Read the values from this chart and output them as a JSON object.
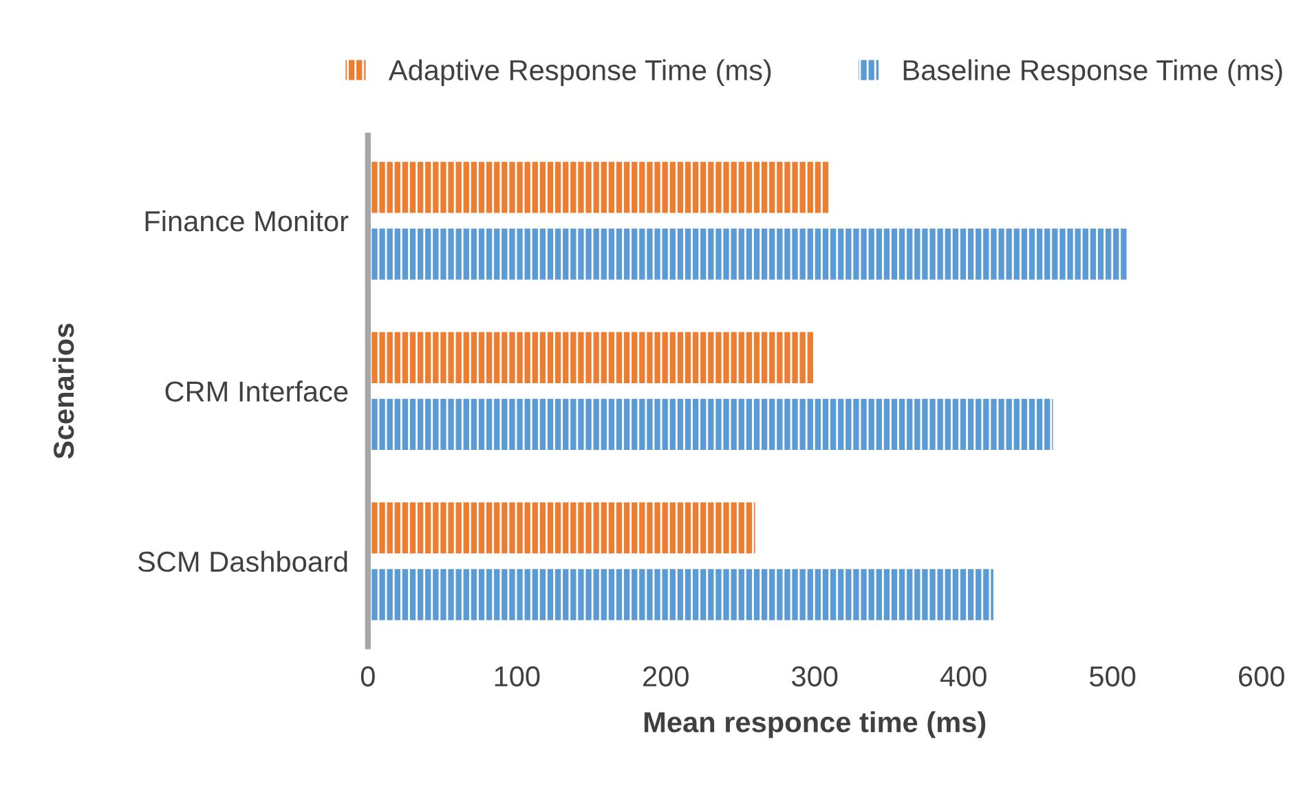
{
  "chart_data": {
    "type": "bar",
    "orientation": "horizontal",
    "xlabel": "Mean responce time (ms)",
    "ylabel": "Scenarios",
    "categories": [
      "Finance Monitor",
      "CRM Interface",
      "SCM Dashboard"
    ],
    "series": [
      {
        "name": "Adaptive Response Time (ms)",
        "color": "#ed7d31",
        "values": [
          310,
          300,
          260
        ]
      },
      {
        "name": "Baseline Response Time (ms)",
        "color": "#5b9bd5",
        "values": [
          510,
          460,
          420
        ]
      }
    ],
    "xlim": [
      0,
      600
    ],
    "xticks": [
      0,
      100,
      200,
      300,
      400,
      500,
      600
    ],
    "grid": false,
    "legend": "top"
  }
}
